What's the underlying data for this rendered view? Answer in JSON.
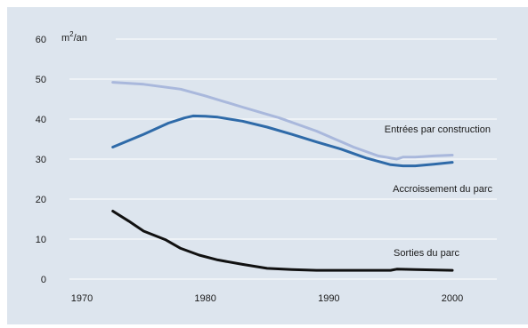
{
  "chart_data": {
    "type": "line",
    "y_unit": "m²/an",
    "y_unit_base": "m",
    "y_unit_sup": "2",
    "y_unit_rest": "/an",
    "xlim": [
      1970,
      2000
    ],
    "ylim": [
      0,
      60
    ],
    "x_ticks": [
      1970,
      1980,
      1990,
      2000
    ],
    "y_ticks": [
      0,
      10,
      20,
      30,
      40,
      50,
      60
    ],
    "grid": "horizontal",
    "colors": {
      "background": "#dde5ee",
      "grid": "#ffffff",
      "text": "#1a1a1a"
    },
    "series": [
      {
        "name": "Entrées par construction",
        "color": "#a9b8dc",
        "points": [
          [
            1972.5,
            49.2
          ],
          [
            1975,
            48.7
          ],
          [
            1978,
            47.5
          ],
          [
            1980,
            45.8
          ],
          [
            1983,
            43.0
          ],
          [
            1986,
            40.3
          ],
          [
            1989,
            37.0
          ],
          [
            1992,
            33.0
          ],
          [
            1994,
            30.8
          ],
          [
            1995.5,
            30.0
          ],
          [
            1996,
            30.5
          ],
          [
            1997,
            30.5
          ],
          [
            1998.5,
            30.8
          ],
          [
            2000,
            31.0
          ]
        ]
      },
      {
        "name": "Accroissement du parc",
        "color": "#2e6aa8",
        "points": [
          [
            1972.5,
            33.0
          ],
          [
            1975,
            36.2
          ],
          [
            1977,
            39.0
          ],
          [
            1978.3,
            40.3
          ],
          [
            1979,
            40.8
          ],
          [
            1980,
            40.7
          ],
          [
            1981,
            40.5
          ],
          [
            1983,
            39.5
          ],
          [
            1985,
            38.0
          ],
          [
            1987,
            36.2
          ],
          [
            1989,
            34.3
          ],
          [
            1991,
            32.5
          ],
          [
            1993,
            30.3
          ],
          [
            1995,
            28.6
          ],
          [
            1996,
            28.3
          ],
          [
            1997,
            28.3
          ],
          [
            1998.5,
            28.7
          ],
          [
            2000,
            29.2
          ]
        ]
      },
      {
        "name": "Sorties du parc",
        "color": "#111111",
        "points": [
          [
            1972.5,
            17.0
          ],
          [
            1973.8,
            14.5
          ],
          [
            1975,
            12.0
          ],
          [
            1976.8,
            9.8
          ],
          [
            1978,
            7.7
          ],
          [
            1979.5,
            6.0
          ],
          [
            1981,
            4.8
          ],
          [
            1983,
            3.7
          ],
          [
            1985,
            2.7
          ],
          [
            1987,
            2.4
          ],
          [
            1989,
            2.2
          ],
          [
            1991,
            2.2
          ],
          [
            1993,
            2.2
          ],
          [
            1995,
            2.2
          ],
          [
            1995.5,
            2.5
          ],
          [
            1997,
            2.4
          ],
          [
            2000,
            2.2
          ]
        ]
      }
    ]
  }
}
